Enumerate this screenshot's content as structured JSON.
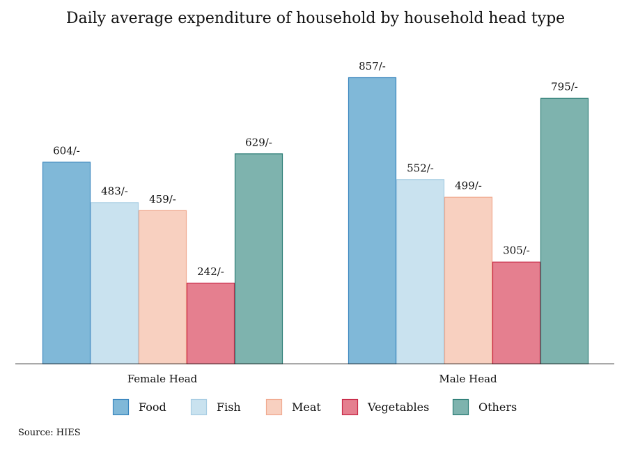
{
  "chart_data": {
    "type": "bar",
    "title": "Daily average expenditure of household by household head type",
    "categories": [
      "Female Head",
      "Male Head"
    ],
    "series": [
      {
        "name": "Food",
        "values": [
          604,
          857
        ],
        "labels": [
          "604/-",
          "857/-"
        ],
        "fill": "#80b8d8",
        "stroke": "#3a86be"
      },
      {
        "name": "Fish",
        "values": [
          483,
          552
        ],
        "labels": [
          "483/-",
          "552/-"
        ],
        "fill": "#c9e2ef",
        "stroke": "#a8cde3"
      },
      {
        "name": "Meat",
        "values": [
          459,
          499
        ],
        "labels": [
          "459/-",
          "499/-"
        ],
        "fill": "#f8d0c0",
        "stroke": "#f0aa90"
      },
      {
        "name": "Vegetables",
        "values": [
          242,
          305
        ],
        "labels": [
          "242/-",
          "305/-"
        ],
        "fill": "#e57f8f",
        "stroke": "#c82a48"
      },
      {
        "name": "Others",
        "values": [
          629,
          795
        ],
        "labels": [
          "629/-",
          "795/-"
        ],
        "fill": "#7eb3ae",
        "stroke": "#2e7e77"
      }
    ],
    "legend_position": "bottom",
    "grid": false
  },
  "source": "Source: HIES"
}
